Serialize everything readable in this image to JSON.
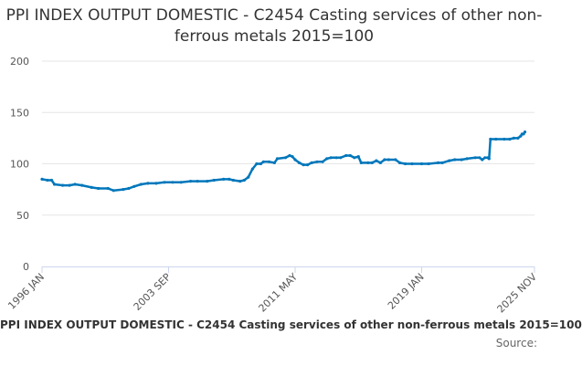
{
  "chart_data": {
    "type": "line",
    "title": "PPI INDEX OUTPUT DOMESTIC - C2454 Casting services of other non-ferrous metals 2015=100",
    "legend": "PPI INDEX OUTPUT DOMESTIC - C2454 Casting services of other non-ferrous metals 2015=100",
    "source": "Source:",
    "xlabel": "",
    "ylabel": "",
    "ylim": [
      0,
      200
    ],
    "yticks": [
      0,
      50,
      100,
      150,
      200
    ],
    "xlim": [
      "1996 JAN",
      "2025 NOV"
    ],
    "xticks": [
      "1996 JAN",
      "2003 SEP",
      "2011 MAY",
      "2019 JAN",
      "2025 NOV"
    ],
    "grid": "horizontal",
    "series_color": "#0077bb",
    "series": [
      {
        "values": [
          [
            "1996 JAN",
            85
          ],
          [
            "1996 MAY",
            84
          ],
          [
            "1996 AUG",
            84
          ],
          [
            "1996 OCT",
            80
          ],
          [
            "1997 APR",
            79
          ],
          [
            "1997 SEP",
            79
          ],
          [
            "1998 JAN",
            80
          ],
          [
            "1998 JUN",
            79
          ],
          [
            "1999 JAN",
            77
          ],
          [
            "1999 JUN",
            76
          ],
          [
            "2000 JAN",
            76
          ],
          [
            "2000 MAY",
            74
          ],
          [
            "2000 DEC",
            75
          ],
          [
            "2001 APR",
            76
          ],
          [
            "2001 AUG",
            78
          ],
          [
            "2002 JAN",
            80
          ],
          [
            "2002 JUN",
            81
          ],
          [
            "2002 DEC",
            81
          ],
          [
            "2003 JUN",
            82
          ],
          [
            "2003 DEC",
            82
          ],
          [
            "2004 JUN",
            82
          ],
          [
            "2005 JAN",
            83
          ],
          [
            "2005 JUN",
            83
          ],
          [
            "2006 JAN",
            83
          ],
          [
            "2006 JUN",
            84
          ],
          [
            "2007 JAN",
            85
          ],
          [
            "2007 MAY",
            85
          ],
          [
            "2007 AUG",
            84
          ],
          [
            "2008 JAN",
            83
          ],
          [
            "2008 APR",
            84
          ],
          [
            "2008 JUL",
            87
          ],
          [
            "2008 OCT",
            95
          ],
          [
            "2009 JAN",
            100
          ],
          [
            "2009 APR",
            100
          ],
          [
            "2009 JUN",
            102
          ],
          [
            "2009 OCT",
            102
          ],
          [
            "2010 FEB",
            101
          ],
          [
            "2010 APR",
            105
          ],
          [
            "2010 OCT",
            106
          ],
          [
            "2011 JAN",
            108
          ],
          [
            "2011 MAR",
            107
          ],
          [
            "2011 MAY",
            104
          ],
          [
            "2011 AUG",
            101
          ],
          [
            "2011 NOV",
            99
          ],
          [
            "2012 FEB",
            99
          ],
          [
            "2012 MAY",
            101
          ],
          [
            "2012 SEP",
            102
          ],
          [
            "2013 JAN",
            102
          ],
          [
            "2013 APR",
            105
          ],
          [
            "2013 JUL",
            106
          ],
          [
            "2013 NOV",
            106
          ],
          [
            "2014 FEB",
            106
          ],
          [
            "2014 JUN",
            108
          ],
          [
            "2014 SEP",
            108
          ],
          [
            "2014 DEC",
            106
          ],
          [
            "2015 MAR",
            107
          ],
          [
            "2015 MAY",
            101
          ],
          [
            "2015 OCT",
            101
          ],
          [
            "2016 JAN",
            101
          ],
          [
            "2016 APR",
            103
          ],
          [
            "2016 JUL",
            101
          ],
          [
            "2016 OCT",
            104
          ],
          [
            "2017 JAN",
            104
          ],
          [
            "2017 JUN",
            104
          ],
          [
            "2017 SEP",
            101
          ],
          [
            "2018 JAN",
            100
          ],
          [
            "2018 JUN",
            100
          ],
          [
            "2019 JAN",
            100
          ],
          [
            "2019 JUN",
            100
          ],
          [
            "2020 JAN",
            101
          ],
          [
            "2020 APR",
            101
          ],
          [
            "2020 SEP",
            103
          ],
          [
            "2021 JAN",
            104
          ],
          [
            "2021 JUN",
            104
          ],
          [
            "2021 OCT",
            105
          ],
          [
            "2022 APR",
            106
          ],
          [
            "2022 JUL",
            106
          ],
          [
            "2022 SEP",
            104
          ],
          [
            "2022 NOV",
            106
          ],
          [
            "2023 JAN",
            106
          ],
          [
            "2023 FEB",
            105
          ],
          [
            "2023 MAR",
            124
          ],
          [
            "2023 JUL",
            124
          ],
          [
            "2024 JAN",
            124
          ],
          [
            "2024 MAY",
            124
          ],
          [
            "2024 AUG",
            125
          ],
          [
            "2024 NOV",
            125
          ],
          [
            "2025 JAN",
            127
          ],
          [
            "2025 FEB",
            129
          ],
          [
            "2025 MAR",
            129
          ],
          [
            "2025 APR",
            131
          ]
        ]
      }
    ]
  }
}
